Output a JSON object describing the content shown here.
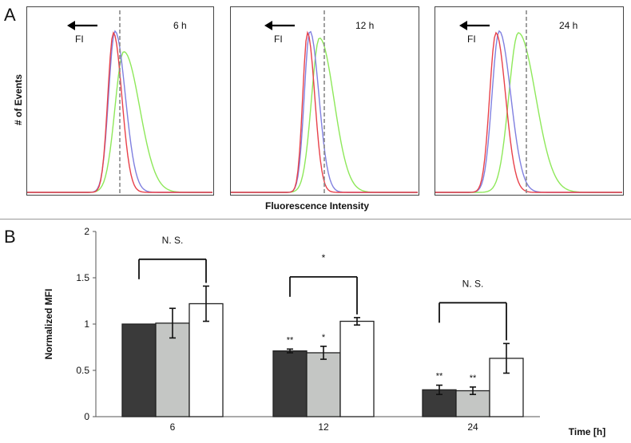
{
  "panel_a": {
    "letter": "A",
    "ylabel": "# of Events",
    "xlabel": "Fluorescence Intensity",
    "arrow_label": "FI",
    "panels": [
      {
        "time": "6 h"
      },
      {
        "time": "12 h"
      },
      {
        "time": "24 h"
      }
    ],
    "colors": {
      "red": "#e8414a",
      "blue": "#8080e0",
      "green": "#8ee85a",
      "dash": "#888888"
    }
  },
  "panel_b": {
    "letter": "B"
  },
  "chart_data": {
    "type": "bar",
    "categories": [
      "6",
      "12",
      "24"
    ],
    "series": [
      {
        "values": [
          1.0,
          0.71,
          0.29
        ],
        "errors": [
          0.0,
          0.02,
          0.05
        ],
        "color": "#3a3a3a"
      },
      {
        "values": [
          1.01,
          0.69,
          0.28
        ],
        "errors": [
          0.16,
          0.07,
          0.04
        ],
        "color": "#c4c6c4"
      },
      {
        "values": [
          1.22,
          1.03,
          0.63
        ],
        "errors": [
          0.19,
          0.04,
          0.16
        ],
        "color": "#ffffff"
      }
    ],
    "xlabel": "Time [h]",
    "ylabel": "Normalized MFI",
    "ylim": [
      0,
      2
    ],
    "yticks": [
      "0",
      "0.5",
      "1",
      "1.5",
      "2"
    ],
    "significance": [
      "N. S.",
      "*",
      "N. S."
    ],
    "bar_marks": [
      [
        "",
        "",
        ""
      ],
      [
        "**",
        "*",
        ""
      ],
      [
        "**",
        "**",
        ""
      ]
    ]
  }
}
